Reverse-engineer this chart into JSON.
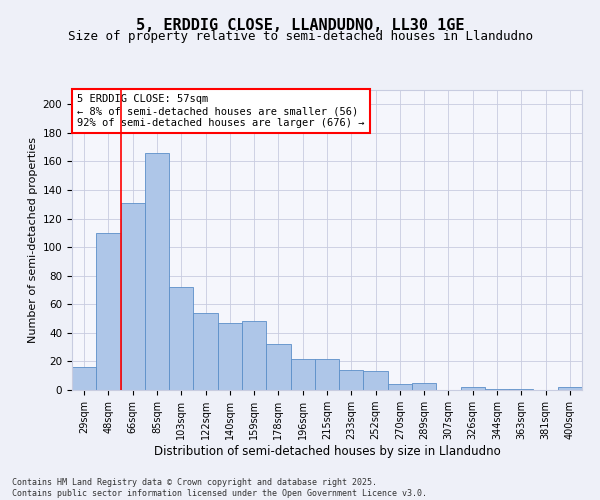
{
  "title": "5, ERDDIG CLOSE, LLANDUDNO, LL30 1GE",
  "subtitle": "Size of property relative to semi-detached houses in Llandudno",
  "xlabel": "Distribution of semi-detached houses by size in Llandudno",
  "ylabel": "Number of semi-detached properties",
  "categories": [
    "29sqm",
    "48sqm",
    "66sqm",
    "85sqm",
    "103sqm",
    "122sqm",
    "140sqm",
    "159sqm",
    "178sqm",
    "196sqm",
    "215sqm",
    "233sqm",
    "252sqm",
    "270sqm",
    "289sqm",
    "307sqm",
    "326sqm",
    "344sqm",
    "363sqm",
    "381sqm",
    "400sqm"
  ],
  "values": [
    16,
    110,
    131,
    166,
    72,
    54,
    47,
    48,
    32,
    22,
    22,
    14,
    13,
    4,
    5,
    0,
    2,
    1,
    1,
    0,
    2
  ],
  "bar_color": "#aec6e8",
  "bar_edge_color": "#5b8fc9",
  "vline_x": 1.5,
  "vline_color": "red",
  "annotation_title": "5 ERDDIG CLOSE: 57sqm",
  "annotation_line1": "← 8% of semi-detached houses are smaller (56)",
  "annotation_line2": "92% of semi-detached houses are larger (676) →",
  "ylim": [
    0,
    210
  ],
  "yticks": [
    0,
    20,
    40,
    60,
    80,
    100,
    120,
    140,
    160,
    180,
    200
  ],
  "footer_line1": "Contains HM Land Registry data © Crown copyright and database right 2025.",
  "footer_line2": "Contains public sector information licensed under the Open Government Licence v3.0.",
  "bg_color": "#eef0f8",
  "plot_bg_color": "#f5f6fc",
  "grid_color": "#c8cce0",
  "title_fontsize": 11,
  "subtitle_fontsize": 9,
  "ylabel_fontsize": 8,
  "xlabel_fontsize": 8.5,
  "tick_fontsize": 7,
  "annotation_fontsize": 7.5,
  "footer_fontsize": 6
}
